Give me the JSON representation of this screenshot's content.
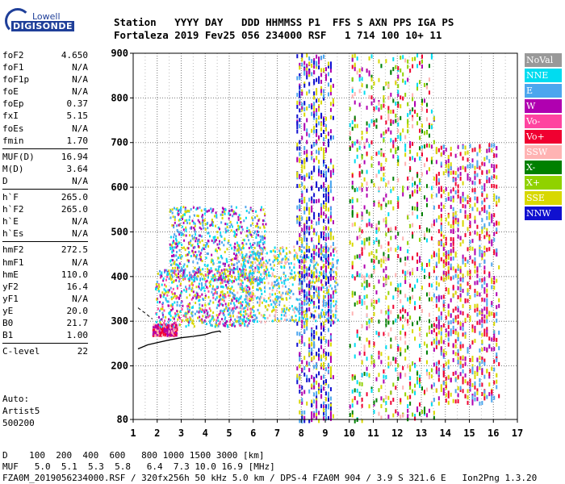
{
  "logo": {
    "line1": "Lowell",
    "line2": "DIGISONDE"
  },
  "header": {
    "line1": "Station   YYYY DAY   DDD HHMMSS P1  FFS S AXN PPS IGA PS",
    "line2": "Fortaleza 2019 Fev25 056 234000 RSF   1 714 100 10+ 11"
  },
  "params": [
    {
      "k": "foF2",
      "v": "4.650"
    },
    {
      "k": "foF1",
      "v": "N/A"
    },
    {
      "k": "foF1p",
      "v": "N/A"
    },
    {
      "k": "foE",
      "v": "N/A"
    },
    {
      "k": "foEp",
      "v": "0.37"
    },
    {
      "k": "fxI",
      "v": "5.15"
    },
    {
      "k": "foEs",
      "v": "N/A"
    },
    {
      "k": "fmin",
      "v": "1.70"
    },
    {
      "sep": true
    },
    {
      "k": "MUF(D)",
      "v": "16.94"
    },
    {
      "k": "M(D)",
      "v": "3.64"
    },
    {
      "k": "D",
      "v": "N/A"
    },
    {
      "sep": true
    },
    {
      "k": "h`F",
      "v": "265.0"
    },
    {
      "k": "h`F2",
      "v": "265.0"
    },
    {
      "k": "h`E",
      "v": "N/A"
    },
    {
      "k": "h`Es",
      "v": "N/A"
    },
    {
      "sep": true
    },
    {
      "k": "hmF2",
      "v": "272.5"
    },
    {
      "k": "hmF1",
      "v": "N/A"
    },
    {
      "k": "hmE",
      "v": "110.0"
    },
    {
      "k": "yF2",
      "v": "16.4"
    },
    {
      "k": "yF1",
      "v": "N/A"
    },
    {
      "k": "yE",
      "v": "20.0"
    },
    {
      "k": "B0",
      "v": "21.7"
    },
    {
      "k": "B1",
      "v": "1.00"
    },
    {
      "sep": true
    },
    {
      "k": "C-level",
      "v": "22"
    }
  ],
  "footer": {
    "l1": "Auto:",
    "l2": "Artist5",
    "l3": "500200"
  },
  "bottom": {
    "d_row": "D    100  200  400  600   800 1000 1500 3000 [km]",
    "muf_row": "MUF   5.0  5.1  5.3  5.8   6.4  7.3 10.0 16.9 [MHz]",
    "file_row": "FZA0M_2019056234000.RSF / 320fx256h 50 kHz 5.0 km / DPS-4 FZA0M 904 / 3.9 S 321.6 E   Ion2Png 1.3.20"
  },
  "legend": [
    {
      "label": "NoVal",
      "color": "#999999"
    },
    {
      "label": "NNE",
      "color": "#00dcf0"
    },
    {
      "label": "E",
      "color": "#4ca6ee"
    },
    {
      "label": "W",
      "color": "#b000b0"
    },
    {
      "label": "Vo-",
      "color": "#ff44a0"
    },
    {
      "label": "Vo+",
      "color": "#f00030"
    },
    {
      "label": "SSW",
      "color": "#ffb3b3"
    },
    {
      "label": "X-",
      "color": "#008000"
    },
    {
      "label": "X+",
      "color": "#90d200"
    },
    {
      "label": "SSE",
      "color": "#d8d800"
    },
    {
      "label": "NNW",
      "color": "#1010d0"
    }
  ],
  "chart_data": {
    "type": "scatter",
    "xlim": [
      1,
      17
    ],
    "ylim": [
      80,
      900
    ],
    "x_ticks": [
      "1",
      "2",
      "3",
      "4",
      "5",
      "6",
      "7",
      "8",
      "9",
      "10",
      "11",
      "12",
      "13",
      "14",
      "15",
      "16",
      "17"
    ],
    "y_ticks": [
      "80",
      "200",
      "300",
      "400",
      "500",
      "600",
      "700",
      "800",
      "900"
    ],
    "grid": true,
    "trace": {
      "name": "",
      "x": [
        1.2,
        1.6,
        2.0,
        2.5,
        3.0,
        3.5,
        4.0,
        4.3,
        4.6,
        4.65
      ],
      "y": [
        238,
        247,
        252,
        258,
        263,
        266,
        270,
        275,
        278,
        275
      ]
    },
    "trace_upper": {
      "x": [
        1.2,
        1.5,
        1.8
      ],
      "y": [
        330,
        318,
        305
      ]
    },
    "echo_clusters": [
      {
        "x": [
          1.8,
          2.8
        ],
        "y": [
          270,
          295
        ],
        "colors": [
          "#f00030",
          "#b000b0",
          "#ffb3b3"
        ]
      },
      {
        "x": [
          1.9,
          6.0
        ],
        "y": [
          290,
          420
        ],
        "colors": [
          "#4ca6ee",
          "#00dcf0",
          "#b000b0",
          "#ff44a0",
          "#d8d800"
        ]
      },
      {
        "x": [
          2.5,
          6.5
        ],
        "y": [
          390,
          560
        ],
        "colors": [
          "#4ca6ee",
          "#00dcf0",
          "#d8d800",
          "#b000b0"
        ]
      },
      {
        "x": [
          5.3,
          9.5
        ],
        "y": [
          300,
          470
        ],
        "colors": [
          "#d8d800",
          "#4ca6ee",
          "#ffb3b3",
          "#00dcf0"
        ]
      },
      {
        "x": [
          7.8,
          9.3
        ],
        "y": [
          80,
          900
        ],
        "colors": [
          "#1010d0",
          "#b000b0",
          "#4ca6ee",
          "#d8d800"
        ]
      },
      {
        "x": [
          10.0,
          13.5
        ],
        "y": [
          80,
          900
        ],
        "colors": [
          "#d8d800",
          "#ffb3b3",
          "#90d200",
          "#f00030",
          "#008000",
          "#b000b0",
          "#00dcf0"
        ]
      },
      {
        "x": [
          13.5,
          16.2
        ],
        "y": [
          120,
          700
        ],
        "colors": [
          "#b000b0",
          "#d8d800",
          "#4ca6ee",
          "#f00030"
        ]
      }
    ]
  }
}
